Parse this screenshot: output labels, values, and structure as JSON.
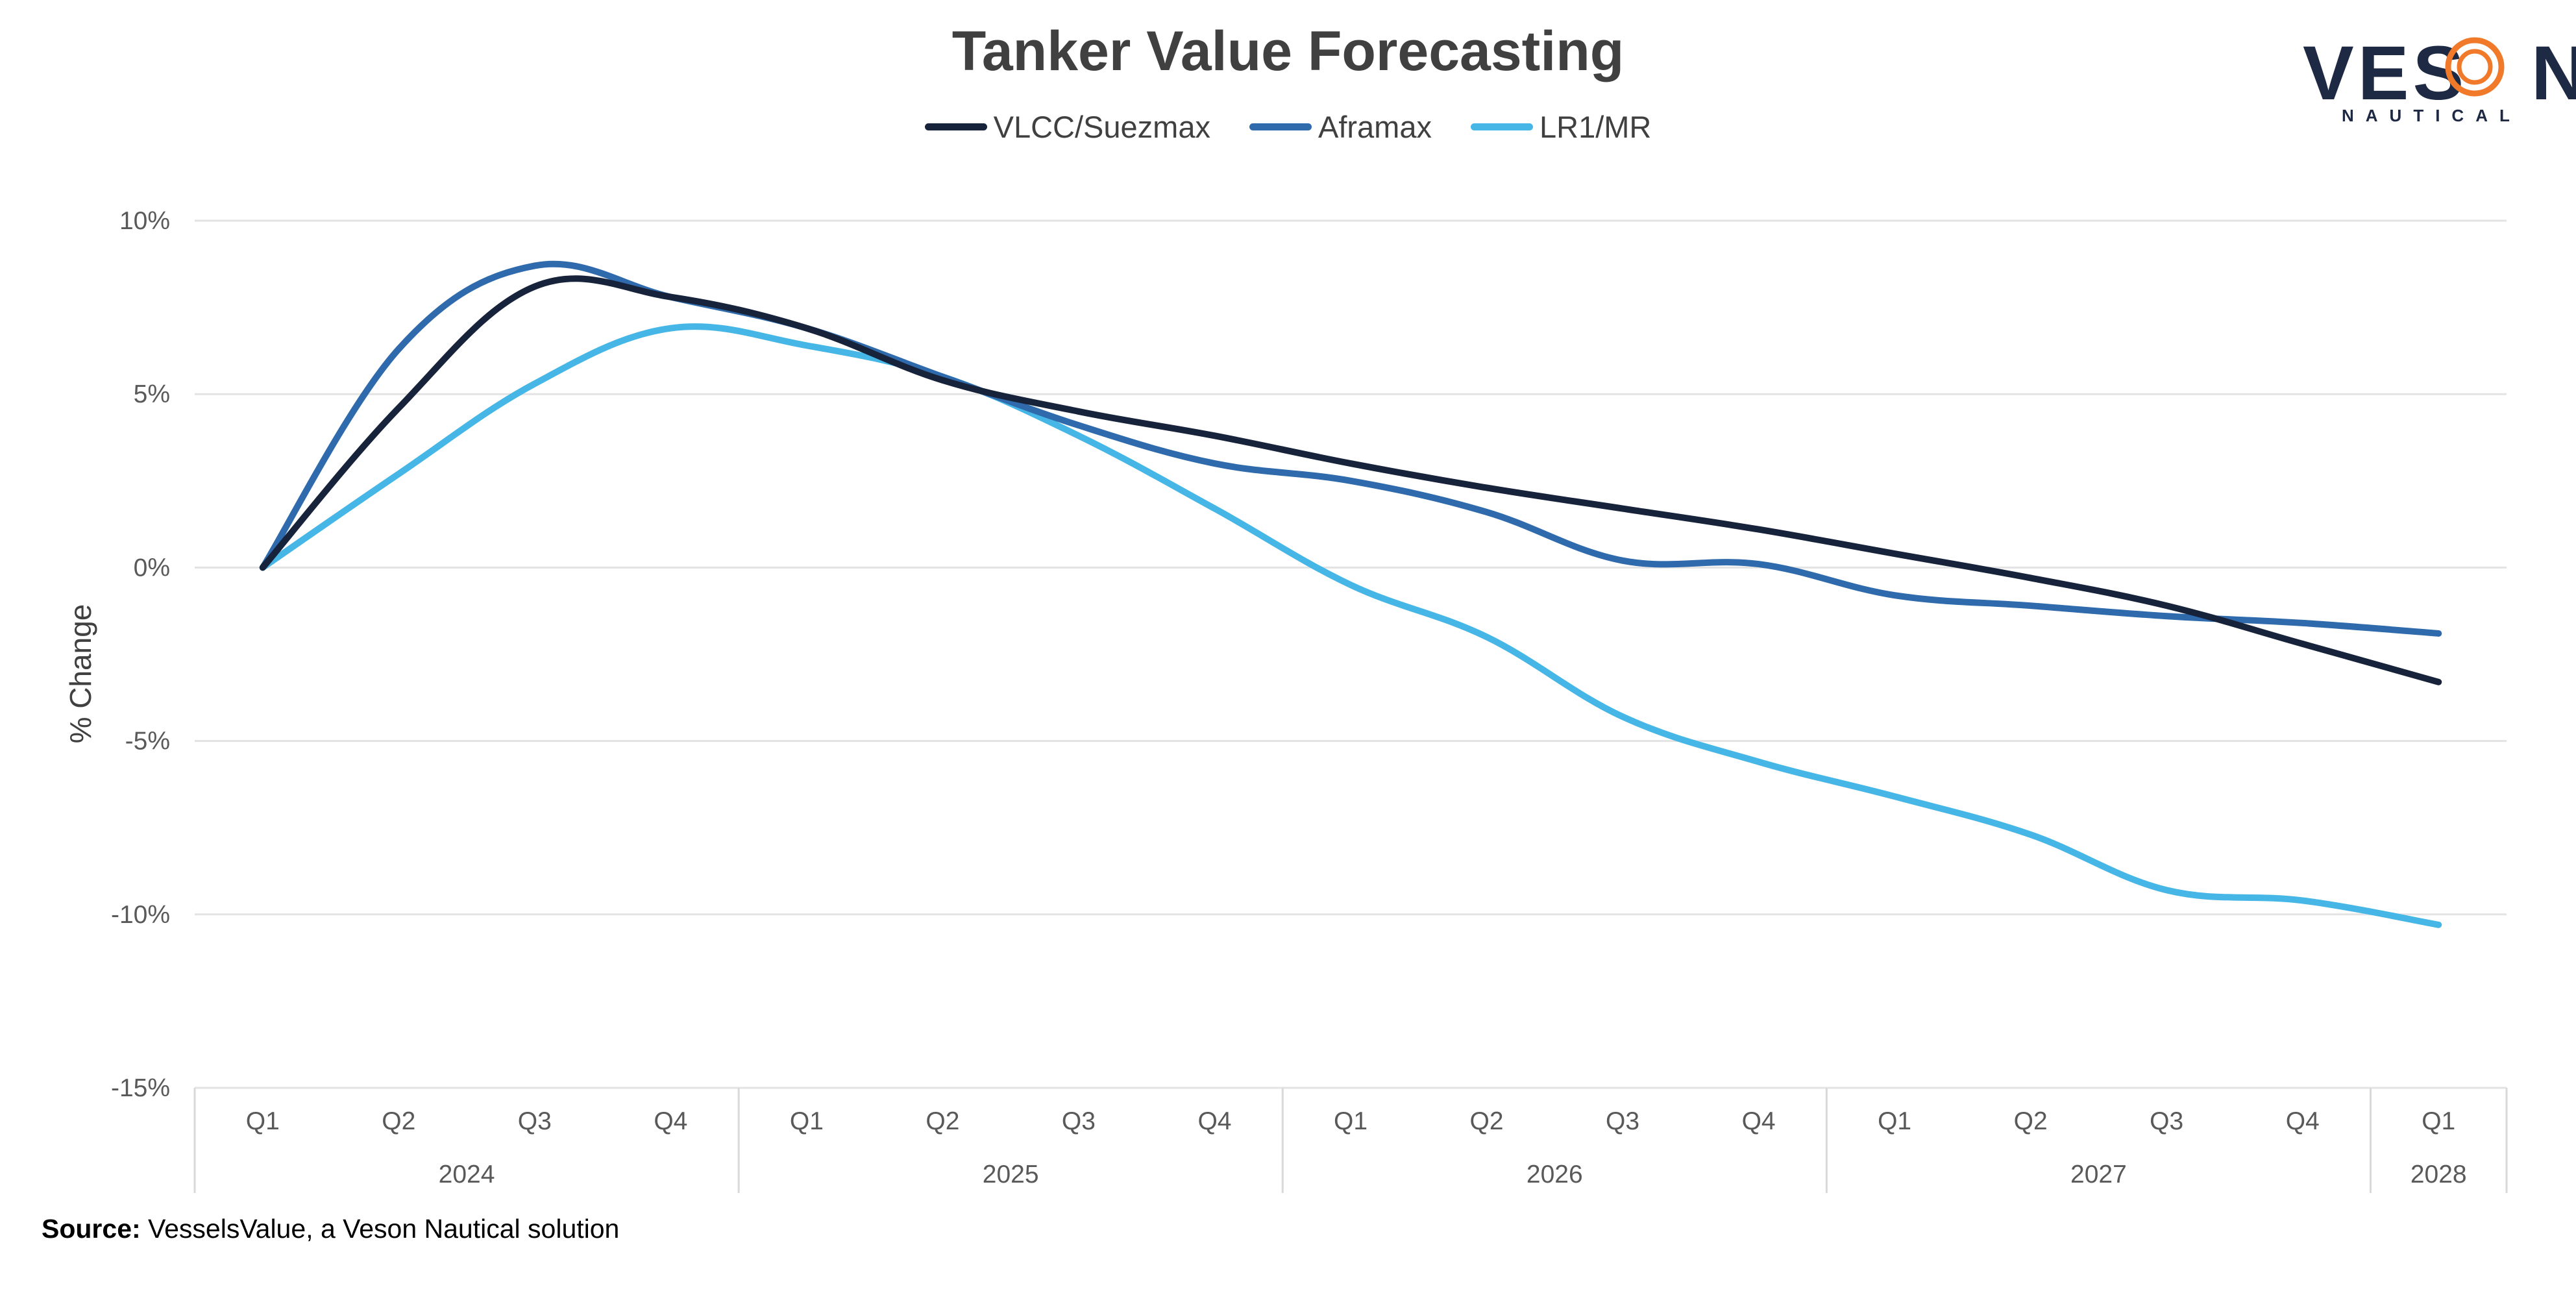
{
  "chart_data": {
    "type": "line",
    "title": "Tanker Value Forecasting",
    "ylabel": "% Change",
    "xlabel": "",
    "ylim": [
      -15,
      10
    ],
    "yticks": [
      10,
      5,
      0,
      -5,
      -10,
      -15
    ],
    "ytick_labels": [
      "10%",
      "5%",
      "0%",
      "-5%",
      "-10%",
      "-15%"
    ],
    "grid": true,
    "legend_position": "top-center",
    "x": [
      "Q1 2024",
      "Q2 2024",
      "Q3 2024",
      "Q4 2024",
      "Q1 2025",
      "Q2 2025",
      "Q3 2025",
      "Q4 2025",
      "Q1 2026",
      "Q2 2026",
      "Q3 2026",
      "Q4 2026",
      "Q1 2027",
      "Q2 2027",
      "Q3 2027",
      "Q4 2027",
      "Q1 2028"
    ],
    "quarter_labels": [
      "Q1",
      "Q2",
      "Q3",
      "Q4",
      "Q1",
      "Q2",
      "Q3",
      "Q4",
      "Q1",
      "Q2",
      "Q3",
      "Q4",
      "Q1",
      "Q2",
      "Q3",
      "Q4",
      "Q1"
    ],
    "year_groups": [
      {
        "label": "2024",
        "start": 0,
        "end": 3
      },
      {
        "label": "2025",
        "start": 4,
        "end": 7
      },
      {
        "label": "2026",
        "start": 8,
        "end": 11
      },
      {
        "label": "2027",
        "start": 12,
        "end": 15
      },
      {
        "label": "2028",
        "start": 16,
        "end": 16
      }
    ],
    "series": [
      {
        "name": "VLCC/Suezmax",
        "color": "#17233b",
        "values": [
          0,
          4.6,
          8.1,
          7.8,
          6.9,
          5.4,
          4.5,
          3.8,
          3.0,
          2.3,
          1.7,
          1.1,
          0.4,
          -0.3,
          -1.1,
          -2.2,
          -3.3
        ]
      },
      {
        "name": "Aframax",
        "color": "#2e6aac",
        "values": [
          0,
          6.3,
          8.7,
          7.8,
          6.9,
          5.5,
          4.1,
          3.0,
          2.5,
          1.6,
          0.2,
          0.1,
          -0.8,
          -1.1,
          -1.4,
          -1.6,
          -1.9
        ]
      },
      {
        "name": "LR1/MR",
        "color": "#45b6e6",
        "values": [
          0,
          2.7,
          5.3,
          6.9,
          6.4,
          5.5,
          3.8,
          1.7,
          -0.5,
          -2.0,
          -4.3,
          -5.6,
          -6.6,
          -7.7,
          -9.3,
          -9.6,
          -10.3
        ]
      }
    ]
  },
  "source": {
    "lead": "Source:",
    "text": " VesselsValue, a Veson Nautical solution"
  },
  "logo": {
    "text": "VESON",
    "sub": "NAUTICAL",
    "accent_color": "#f07a2a",
    "color": "#1e2a44"
  }
}
